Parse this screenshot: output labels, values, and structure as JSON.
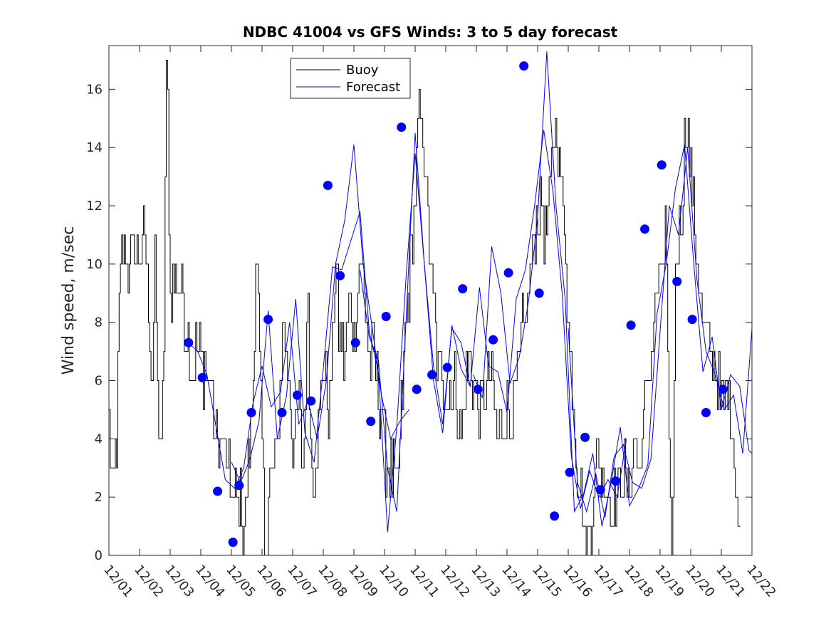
{
  "chart_data": {
    "type": "line",
    "title": "NDBC 41004 vs GFS Winds: 3 to 5 day forecast",
    "xlabel": "",
    "ylabel": "Wind speed, m/sec",
    "xlim": [
      0,
      21
    ],
    "ylim": [
      0,
      17.5
    ],
    "x_ticks": [
      0,
      1,
      2,
      3,
      4,
      5,
      6,
      7,
      8,
      9,
      10,
      11,
      12,
      13,
      14,
      15,
      16,
      17,
      18,
      19,
      20,
      21
    ],
    "x_tick_labels": [
      "12/01",
      "12/02",
      "12/03",
      "12/04",
      "12/05",
      "12/06",
      "12/07",
      "12/08",
      "12/09",
      "12/10",
      "12/11",
      "12/12",
      "12/13",
      "12/14",
      "12/15",
      "12/16",
      "12/17",
      "12/18",
      "12/19",
      "12/20",
      "12/21",
      "12/22"
    ],
    "y_ticks": [
      0,
      2,
      4,
      6,
      8,
      10,
      12,
      14,
      16
    ],
    "grid": false,
    "legend": {
      "location": "top-center",
      "entries": [
        "Buoy",
        "Forecast"
      ]
    },
    "colors": {
      "buoy": "#000000",
      "forecast": "#0000ff",
      "markers": "#0000ff",
      "axes": "#262626"
    },
    "buoy_anchors": [
      [
        0.0,
        5.0
      ],
      [
        0.05,
        3.0
      ],
      [
        0.15,
        2.0
      ],
      [
        0.25,
        4.0
      ],
      [
        0.35,
        9.0
      ],
      [
        0.45,
        10.5
      ],
      [
        0.6,
        10.0
      ],
      [
        0.8,
        10.5
      ],
      [
        1.0,
        10.0
      ],
      [
        1.15,
        11.0
      ],
      [
        1.3,
        9.0
      ],
      [
        1.4,
        6.0
      ],
      [
        1.5,
        10.0
      ],
      [
        1.6,
        5.0
      ],
      [
        1.7,
        3.0
      ],
      [
        1.8,
        8.0
      ],
      [
        1.85,
        15.0
      ],
      [
        1.9,
        17.0
      ],
      [
        2.0,
        9.0
      ],
      [
        2.2,
        10.0
      ],
      [
        2.4,
        9.0
      ],
      [
        2.5,
        8.0
      ],
      [
        2.7,
        6.5
      ],
      [
        2.9,
        7.0
      ],
      [
        3.1,
        6.5
      ],
      [
        3.3,
        6.0
      ],
      [
        3.5,
        4.0
      ],
      [
        3.7,
        4.0
      ],
      [
        3.9,
        2.5
      ],
      [
        4.1,
        2.0
      ],
      [
        4.3,
        2.0
      ],
      [
        4.4,
        0.7
      ],
      [
        4.5,
        2.0
      ],
      [
        4.7,
        6.0
      ],
      [
        4.8,
        11.0
      ],
      [
        4.9,
        7.0
      ],
      [
        5.0,
        4.0
      ],
      [
        5.1,
        0.0
      ],
      [
        5.3,
        3.0
      ],
      [
        5.5,
        3.5
      ],
      [
        5.7,
        8.0
      ],
      [
        5.9,
        6.0
      ],
      [
        6.0,
        4.0
      ],
      [
        6.2,
        5.0
      ],
      [
        6.35,
        3.0
      ],
      [
        6.5,
        9.0
      ],
      [
        6.6,
        3.0
      ],
      [
        6.8,
        3.5
      ],
      [
        7.0,
        6.5
      ],
      [
        7.2,
        4.5
      ],
      [
        7.4,
        10.5
      ],
      [
        7.5,
        8.0
      ],
      [
        7.7,
        6.5
      ],
      [
        7.9,
        9.0
      ],
      [
        8.0,
        7.0
      ],
      [
        8.2,
        10.5
      ],
      [
        8.3,
        9.5
      ],
      [
        8.5,
        7.0
      ],
      [
        8.7,
        6.5
      ],
      [
        8.9,
        5.0
      ],
      [
        9.0,
        3.5
      ],
      [
        9.2,
        3.0
      ],
      [
        9.4,
        2.0
      ],
      [
        9.5,
        4.0
      ],
      [
        9.7,
        8.0
      ],
      [
        9.9,
        11.0
      ],
      [
        10.05,
        13.5
      ],
      [
        10.15,
        15.0
      ],
      [
        10.3,
        14.0
      ],
      [
        10.5,
        10.0
      ],
      [
        10.7,
        7.0
      ],
      [
        10.9,
        6.0
      ],
      [
        11.1,
        5.5
      ],
      [
        11.3,
        6.0
      ],
      [
        11.5,
        4.0
      ],
      [
        11.7,
        6.5
      ],
      [
        11.9,
        6.0
      ],
      [
        12.1,
        5.0
      ],
      [
        12.3,
        6.0
      ],
      [
        12.5,
        5.5
      ],
      [
        12.7,
        4.0
      ],
      [
        12.9,
        5.0
      ],
      [
        13.1,
        4.5
      ],
      [
        13.3,
        6.0
      ],
      [
        13.5,
        7.5
      ],
      [
        13.7,
        9.0
      ],
      [
        13.9,
        11.0
      ],
      [
        14.1,
        12.0
      ],
      [
        14.3,
        11.0
      ],
      [
        14.5,
        14.0
      ],
      [
        14.6,
        15.0
      ],
      [
        14.75,
        13.0
      ],
      [
        14.9,
        11.0
      ],
      [
        15.0,
        8.0
      ],
      [
        15.1,
        6.0
      ],
      [
        15.3,
        3.0
      ],
      [
        15.4,
        2.0
      ],
      [
        15.5,
        1.0
      ],
      [
        15.6,
        0.0
      ],
      [
        15.8,
        2.0
      ],
      [
        16.0,
        3.5
      ],
      [
        16.2,
        2.5
      ],
      [
        16.4,
        1.5
      ],
      [
        16.6,
        2.0
      ],
      [
        16.8,
        3.0
      ],
      [
        17.0,
        2.0
      ],
      [
        17.2,
        4.0
      ],
      [
        17.3,
        3.0
      ],
      [
        17.5,
        5.0
      ],
      [
        17.7,
        7.0
      ],
      [
        17.9,
        9.0
      ],
      [
        18.0,
        9.0
      ],
      [
        18.1,
        10.5
      ],
      [
        18.2,
        11.0
      ],
      [
        18.3,
        2.0
      ],
      [
        18.4,
        0.0
      ],
      [
        18.5,
        10.0
      ],
      [
        18.7,
        12.0
      ],
      [
        18.85,
        15.0
      ],
      [
        19.0,
        13.0
      ],
      [
        19.2,
        10.0
      ],
      [
        19.4,
        8.0
      ],
      [
        19.6,
        7.0
      ],
      [
        19.8,
        6.5
      ],
      [
        20.0,
        5.0
      ],
      [
        20.2,
        6.0
      ],
      [
        20.4,
        4.0
      ],
      [
        20.5,
        2.0
      ],
      [
        20.6,
        0.5
      ],
      [
        20.65,
        0.0
      ]
    ],
    "forecast_series": [
      [
        [
          2.6,
          7.3
        ],
        [
          2.9,
          7.0
        ],
        [
          3.2,
          6.2
        ],
        [
          3.5,
          4.4
        ],
        [
          3.8,
          2.6
        ],
        [
          4.1,
          2.3
        ],
        [
          4.4,
          3.0
        ],
        [
          4.7,
          5.2
        ],
        [
          5.0,
          6.5
        ],
        [
          5.3,
          5.1
        ],
        [
          5.6,
          5.6
        ],
        [
          5.9,
          8.0
        ],
        [
          6.2,
          4.5
        ],
        [
          6.5,
          5.3
        ],
        [
          6.8,
          4.0
        ],
        [
          7.1,
          6.0
        ],
        [
          7.4,
          10.0
        ],
        [
          7.7,
          11.5
        ],
        [
          8.0,
          14.1
        ],
        [
          8.3,
          10.0
        ],
        [
          8.6,
          7.8
        ],
        [
          8.9,
          5.5
        ],
        [
          9.2,
          4.0
        ],
        [
          9.5,
          4.6
        ],
        [
          9.8,
          5.0
        ]
      ],
      [
        [
          4.0,
          3.2
        ],
        [
          4.3,
          2.5
        ],
        [
          4.6,
          3.3
        ],
        [
          4.9,
          4.6
        ],
        [
          5.2,
          8.4
        ],
        [
          5.5,
          4.0
        ],
        [
          5.8,
          5.5
        ],
        [
          6.1,
          8.8
        ],
        [
          6.4,
          4.2
        ],
        [
          6.7,
          3.2
        ],
        [
          7.0,
          6.4
        ],
        [
          7.3,
          9.9
        ],
        [
          7.6,
          9.8
        ],
        [
          7.9,
          10.8
        ],
        [
          8.2,
          11.8
        ],
        [
          8.5,
          7.7
        ],
        [
          8.8,
          6.3
        ],
        [
          9.1,
          0.8
        ],
        [
          9.4,
          4.4
        ],
        [
          9.7,
          9.5
        ],
        [
          10.0,
          13.8
        ],
        [
          10.3,
          10.0
        ],
        [
          10.6,
          6.5
        ],
        [
          10.9,
          4.5
        ],
        [
          11.2,
          7.8
        ],
        [
          11.5,
          7.3
        ],
        [
          11.8,
          5.8
        ]
      ],
      [
        [
          8.2,
          9.8
        ],
        [
          8.5,
          7.5
        ],
        [
          8.8,
          6.7
        ],
        [
          9.1,
          3.0
        ],
        [
          9.4,
          1.5
        ],
        [
          9.7,
          8.0
        ],
        [
          10.0,
          14.5
        ],
        [
          10.3,
          10.0
        ],
        [
          10.6,
          6.0
        ],
        [
          10.9,
          4.2
        ],
        [
          11.2,
          7.9
        ],
        [
          11.5,
          6.4
        ],
        [
          11.8,
          5.8
        ],
        [
          12.1,
          9.2
        ],
        [
          12.4,
          6.5
        ],
        [
          12.7,
          6.3
        ],
        [
          13.0,
          4.9
        ],
        [
          13.3,
          8.8
        ],
        [
          13.6,
          9.8
        ],
        [
          13.9,
          12.0
        ],
        [
          14.2,
          14.6
        ],
        [
          14.5,
          12.5
        ],
        [
          14.8,
          9.0
        ],
        [
          15.1,
          3.4
        ],
        [
          15.4,
          1.6
        ],
        [
          15.7,
          2.9
        ],
        [
          16.0,
          2.0
        ],
        [
          16.3,
          2.6
        ],
        [
          16.6,
          2.0
        ],
        [
          16.9,
          4.0
        ]
      ],
      [
        [
          11.9,
          6.2
        ],
        [
          12.2,
          5.4
        ],
        [
          12.5,
          10.6
        ],
        [
          12.8,
          9.0
        ],
        [
          13.1,
          5.9
        ],
        [
          13.4,
          6.8
        ],
        [
          13.7,
          8.7
        ],
        [
          14.0,
          11.6
        ],
        [
          14.3,
          17.3
        ],
        [
          14.6,
          12.0
        ],
        [
          14.9,
          8.8
        ],
        [
          15.2,
          1.5
        ],
        [
          15.5,
          2.1
        ],
        [
          15.8,
          3.5
        ],
        [
          16.1,
          1.0
        ],
        [
          16.4,
          2.5
        ],
        [
          16.7,
          4.4
        ],
        [
          17.0,
          1.7
        ],
        [
          17.3,
          2.3
        ],
        [
          17.6,
          3.1
        ],
        [
          17.9,
          8.3
        ],
        [
          18.2,
          10.0
        ],
        [
          18.5,
          12.6
        ],
        [
          18.8,
          14.1
        ],
        [
          19.1,
          10.0
        ],
        [
          19.4,
          6.3
        ],
        [
          19.7,
          7.5
        ],
        [
          20.0,
          5.0
        ],
        [
          20.3,
          6.2
        ],
        [
          20.6,
          5.8
        ],
        [
          20.9,
          3.6
        ],
        [
          21.0,
          3.5
        ]
      ],
      [
        [
          15.0,
          7.8
        ],
        [
          15.3,
          2.5
        ],
        [
          15.6,
          1.5
        ],
        [
          15.9,
          2.8
        ],
        [
          16.2,
          1.3
        ],
        [
          16.5,
          3.4
        ],
        [
          16.8,
          3.8
        ],
        [
          17.1,
          2.5
        ],
        [
          17.4,
          2.3
        ],
        [
          17.7,
          3.3
        ],
        [
          18.0,
          7.7
        ],
        [
          18.3,
          12.0
        ],
        [
          18.6,
          11.0
        ],
        [
          18.9,
          14.0
        ],
        [
          19.2,
          9.5
        ],
        [
          19.5,
          7.0
        ],
        [
          19.8,
          6.2
        ],
        [
          20.1,
          5.0
        ],
        [
          20.4,
          5.5
        ],
        [
          20.7,
          3.5
        ],
        [
          21.0,
          7.8
        ]
      ]
    ],
    "forecast_markers": [
      [
        2.6,
        7.3
      ],
      [
        3.05,
        6.1
      ],
      [
        3.55,
        2.2
      ],
      [
        4.05,
        0.45
      ],
      [
        4.25,
        2.4
      ],
      [
        4.65,
        4.9
      ],
      [
        5.2,
        8.1
      ],
      [
        5.65,
        4.9
      ],
      [
        6.15,
        5.5
      ],
      [
        6.6,
        5.3
      ],
      [
        7.15,
        12.7
      ],
      [
        7.55,
        9.6
      ],
      [
        8.05,
        7.3
      ],
      [
        8.55,
        4.6
      ],
      [
        9.05,
        8.2
      ],
      [
        9.55,
        14.7
      ],
      [
        10.05,
        5.7
      ],
      [
        10.55,
        6.2
      ],
      [
        11.05,
        6.45
      ],
      [
        11.55,
        9.15
      ],
      [
        12.05,
        5.7
      ],
      [
        12.55,
        7.4
      ],
      [
        13.05,
        9.7
      ],
      [
        13.55,
        16.8
      ],
      [
        14.05,
        9.0
      ],
      [
        14.55,
        1.35
      ],
      [
        15.05,
        2.85
      ],
      [
        15.55,
        4.05
      ],
      [
        16.05,
        2.25
      ],
      [
        16.55,
        2.55
      ],
      [
        17.05,
        7.9
      ],
      [
        17.5,
        11.2
      ],
      [
        18.05,
        13.4
      ],
      [
        18.55,
        9.4
      ],
      [
        19.05,
        8.1
      ],
      [
        19.5,
        4.9
      ],
      [
        20.05,
        5.7
      ]
    ]
  }
}
